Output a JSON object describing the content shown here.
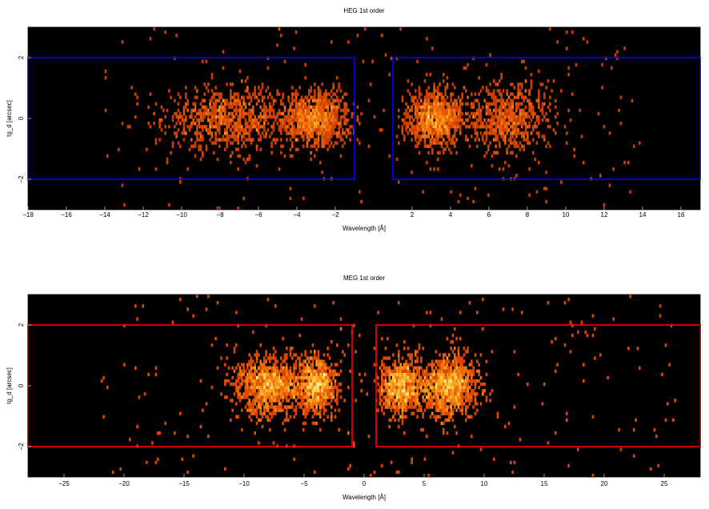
{
  "chart_data": [
    {
      "type": "heatmap",
      "title": "HEG 1st order",
      "xlabel": "Wavelength [Å]",
      "ylabel": "tg_d [arcsec]",
      "xlim": [
        -18,
        17
      ],
      "ylim": [
        -3,
        3
      ],
      "xticks": [
        -18,
        -16,
        -14,
        -12,
        -10,
        -8,
        -6,
        -4,
        -2,
        2,
        4,
        6,
        8,
        10,
        12,
        14,
        16
      ],
      "xtick_labels": [
        "−18",
        "−16",
        "−14",
        "−12",
        "−10",
        "−8",
        "−6",
        "−4",
        "−2",
        "2",
        "4",
        "6",
        "8",
        "10",
        "12",
        "14",
        "16"
      ],
      "yticks": [
        -2,
        0,
        2
      ],
      "ytick_labels": [
        "−2",
        "0",
        "2"
      ],
      "background": "#000000",
      "colormap": "hot",
      "region_color": "#0000ff",
      "regions": [
        {
          "x": [
            -18,
            -1
          ],
          "y": [
            -2,
            2
          ]
        },
        {
          "x": [
            1,
            17
          ],
          "y": [
            -2,
            2
          ]
        }
      ],
      "clusters": [
        {
          "x": -7.5,
          "xw": 3.0,
          "y": 0,
          "yw": 0.5,
          "n": 850
        },
        {
          "x": -3.0,
          "xw": 1.6,
          "y": 0,
          "yw": 0.45,
          "n": 900
        },
        {
          "x": 3.2,
          "xw": 1.3,
          "y": 0,
          "yw": 0.45,
          "n": 950
        },
        {
          "x": 7.0,
          "xw": 2.0,
          "y": 0,
          "yw": 0.55,
          "n": 650
        }
      ],
      "halo": {
        "x": [
          -14,
          14
        ],
        "y": [
          -3,
          3
        ],
        "n": 240
      },
      "grid": false
    },
    {
      "type": "heatmap",
      "title": "MEG 1st order",
      "xlabel": "Wavelength [Å]",
      "ylabel": "tg_d [arcsec]",
      "xlim": [
        -28,
        28
      ],
      "ylim": [
        -3,
        3
      ],
      "xticks": [
        -25,
        -20,
        -15,
        -10,
        -5,
        0,
        5,
        10,
        15,
        20,
        25
      ],
      "xtick_labels": [
        "−25",
        "−20",
        "−15",
        "−10",
        "−5",
        "0",
        "5",
        "10",
        "15",
        "20",
        "25"
      ],
      "yticks": [
        -2,
        0,
        2
      ],
      "ytick_labels": [
        "−2",
        "0",
        "2"
      ],
      "background": "#000000",
      "colormap": "hot",
      "region_color": "#ff0000",
      "regions": [
        {
          "x": [
            -28,
            -1
          ],
          "y": [
            -2,
            2
          ]
        },
        {
          "x": [
            1,
            28
          ],
          "y": [
            -2,
            2
          ]
        }
      ],
      "clusters": [
        {
          "x": -8.0,
          "xw": 2.5,
          "y": 0,
          "yw": 0.5,
          "n": 1000
        },
        {
          "x": -4.0,
          "xw": 1.5,
          "y": 0,
          "yw": 0.45,
          "n": 800
        },
        {
          "x": 3.0,
          "xw": 1.6,
          "y": 0,
          "yw": 0.45,
          "n": 800
        },
        {
          "x": 7.0,
          "xw": 2.2,
          "y": 0,
          "yw": 0.5,
          "n": 1100
        }
      ],
      "halo": {
        "x": [
          -22,
          26
        ],
        "y": [
          -3,
          3
        ],
        "n": 260
      },
      "grid": false
    }
  ]
}
